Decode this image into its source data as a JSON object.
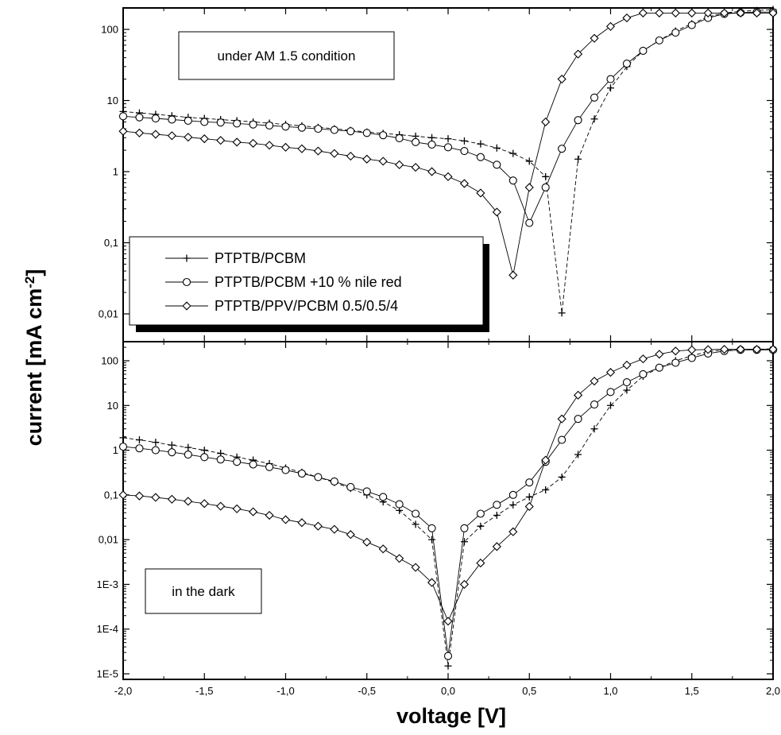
{
  "chart_data": {
    "type": "scatter",
    "xlabel": "voltage [V]",
    "ylabel": {
      "text": "current [mA cm",
      "sup": "-2",
      "tail": "]"
    },
    "xlim": [
      -2.0,
      2.0
    ],
    "x_ticks": [
      {
        "v": -2.0,
        "label": "-2,0"
      },
      {
        "v": -1.5,
        "label": "-1,5"
      },
      {
        "v": -1.0,
        "label": "-1,0"
      },
      {
        "v": -0.5,
        "label": "-0,5"
      },
      {
        "v": 0.0,
        "label": "0,0"
      },
      {
        "v": 0.5,
        "label": "0,5"
      },
      {
        "v": 1.0,
        "label": "1,0"
      },
      {
        "v": 1.5,
        "label": "1,5"
      },
      {
        "v": 2.0,
        "label": "2,0"
      }
    ],
    "log_scale": true,
    "legend": {
      "placement": "top panel, lower-left",
      "entries": [
        {
          "marker": "plus",
          "label": "PTPTB/PCBM"
        },
        {
          "marker": "circle",
          "label": "PTPTB/PCBM +10 % nile red"
        },
        {
          "marker": "diamond",
          "label": "PTPTB/PPV/PCBM 0.5/0.5/4"
        }
      ]
    },
    "panels": [
      {
        "id": "top",
        "annotation": "under AM 1.5 condition",
        "ylim": [
          0.005,
          200
        ],
        "y_ticks": [
          {
            "v": 0.01,
            "label": "0,01"
          },
          {
            "v": 0.1,
            "label": "0,1"
          },
          {
            "v": 1,
            "label": "1"
          },
          {
            "v": 10,
            "label": "10"
          },
          {
            "v": 100,
            "label": "100"
          }
        ],
        "series": [
          {
            "marker": "plus",
            "dash": true,
            "x": [
              -2.0,
              -1.9,
              -1.8,
              -1.7,
              -1.6,
              -1.5,
              -1.4,
              -1.3,
              -1.2,
              -1.1,
              -1.0,
              -0.9,
              -0.8,
              -0.7,
              -0.6,
              -0.5,
              -0.4,
              -0.3,
              -0.2,
              -0.1,
              0.0,
              0.1,
              0.2,
              0.3,
              0.4,
              0.5,
              0.6,
              0.7,
              0.8,
              0.9,
              1.0,
              1.1,
              1.2,
              1.3,
              1.4,
              1.5,
              1.6,
              1.7,
              1.8,
              1.9,
              2.0
            ],
            "y": [
              7,
              6.7,
              6.4,
              6.1,
              5.8,
              5.6,
              5.4,
              5.2,
              5.0,
              4.8,
              4.6,
              4.4,
              4.2,
              4.0,
              3.8,
              3.6,
              3.45,
              3.3,
              3.15,
              3.0,
              2.9,
              2.7,
              2.45,
              2.15,
              1.8,
              1.4,
              0.85,
              0.0103,
              1.5,
              5.5,
              15,
              30,
              50,
              70,
              95,
              120,
              150,
              170,
              180,
              185,
              190
            ]
          },
          {
            "marker": "circle",
            "x": [
              -2.0,
              -1.9,
              -1.8,
              -1.7,
              -1.6,
              -1.5,
              -1.4,
              -1.3,
              -1.2,
              -1.1,
              -1.0,
              -0.9,
              -0.8,
              -0.7,
              -0.6,
              -0.5,
              -0.4,
              -0.3,
              -0.2,
              -0.1,
              0.0,
              0.1,
              0.2,
              0.3,
              0.4,
              0.5,
              0.6,
              0.7,
              0.8,
              0.9,
              1.0,
              1.1,
              1.2,
              1.3,
              1.4,
              1.5,
              1.6,
              1.7,
              1.8,
              1.9,
              2.0
            ],
            "y": [
              6,
              5.8,
              5.6,
              5.4,
              5.2,
              5.0,
              4.9,
              4.75,
              4.6,
              4.45,
              4.3,
              4.15,
              4.0,
              3.85,
              3.7,
              3.5,
              3.25,
              2.95,
              2.6,
              2.4,
              2.2,
              1.95,
              1.6,
              1.25,
              0.75,
              0.19,
              0.6,
              2.1,
              5.3,
              11,
              20,
              33,
              50,
              70,
              90,
              115,
              145,
              165,
              172,
              175,
              175
            ]
          },
          {
            "marker": "diamond",
            "x": [
              -2.0,
              -1.9,
              -1.8,
              -1.7,
              -1.6,
              -1.5,
              -1.4,
              -1.3,
              -1.2,
              -1.1,
              -1.0,
              -0.9,
              -0.8,
              -0.7,
              -0.6,
              -0.5,
              -0.4,
              -0.3,
              -0.2,
              -0.1,
              0.0,
              0.1,
              0.2,
              0.3,
              0.4,
              0.5,
              0.6,
              0.7,
              0.8,
              0.9,
              1.0,
              1.1,
              1.2,
              1.3,
              1.4,
              1.5,
              1.6,
              1.7,
              1.8,
              1.9,
              2.0
            ],
            "y": [
              3.7,
              3.5,
              3.35,
              3.2,
              3.05,
              2.9,
              2.75,
              2.6,
              2.5,
              2.35,
              2.2,
              2.1,
              1.95,
              1.8,
              1.65,
              1.5,
              1.4,
              1.25,
              1.15,
              1.0,
              0.85,
              0.68,
              0.5,
              0.27,
              0.035,
              0.6,
              5.0,
              20,
              45,
              75,
              110,
              145,
              170,
              170,
              170,
              170,
              170,
              170,
              170,
              170,
              170
            ]
          }
        ]
      },
      {
        "id": "bottom",
        "annotation": "in the dark",
        "ylim": [
          1e-05,
          200
        ],
        "y_ticks": [
          {
            "v": 1e-05,
            "label": "1E-5"
          },
          {
            "v": 0.0001,
            "label": "1E-4"
          },
          {
            "v": 0.001,
            "label": "1E-3"
          },
          {
            "v": 0.01,
            "label": "0,01"
          },
          {
            "v": 0.1,
            "label": "0,1"
          },
          {
            "v": 1,
            "label": "1"
          },
          {
            "v": 10,
            "label": "10"
          },
          {
            "v": 100,
            "label": "100"
          }
        ],
        "series": [
          {
            "marker": "plus",
            "dash": true,
            "x": [
              -2.0,
              -1.9,
              -1.8,
              -1.7,
              -1.6,
              -1.5,
              -1.4,
              -1.3,
              -1.2,
              -1.1,
              -1.0,
              -0.9,
              -0.8,
              -0.7,
              -0.6,
              -0.5,
              -0.4,
              -0.3,
              -0.2,
              -0.1,
              0.0,
              0.1,
              0.2,
              0.3,
              0.4,
              0.5,
              0.6,
              0.7,
              0.8,
              0.9,
              1.0,
              1.1,
              1.2,
              1.3,
              1.4,
              1.5,
              1.6,
              1.7,
              1.8,
              1.9,
              2.0
            ],
            "y": [
              1.9,
              1.7,
              1.5,
              1.3,
              1.15,
              1.0,
              0.85,
              0.7,
              0.6,
              0.5,
              0.4,
              0.32,
              0.25,
              0.19,
              0.14,
              0.1,
              0.07,
              0.045,
              0.022,
              0.01,
              1.5e-05,
              0.009,
              0.02,
              0.035,
              0.06,
              0.09,
              0.13,
              0.25,
              0.8,
              3,
              10,
              22,
              45,
              70,
              100,
              130,
              160,
              175,
              180,
              180,
              185
            ]
          },
          {
            "marker": "circle",
            "x": [
              -2.0,
              -1.9,
              -1.8,
              -1.7,
              -1.6,
              -1.5,
              -1.4,
              -1.3,
              -1.2,
              -1.1,
              -1.0,
              -0.9,
              -0.8,
              -0.7,
              -0.6,
              -0.5,
              -0.4,
              -0.3,
              -0.2,
              -0.1,
              0.0,
              0.1,
              0.2,
              0.3,
              0.4,
              0.5,
              0.6,
              0.7,
              0.8,
              0.9,
              1.0,
              1.1,
              1.2,
              1.3,
              1.4,
              1.5,
              1.6,
              1.7,
              1.8,
              1.9,
              2.0
            ],
            "y": [
              1.2,
              1.1,
              1.0,
              0.9,
              0.8,
              0.7,
              0.62,
              0.55,
              0.48,
              0.42,
              0.36,
              0.3,
              0.25,
              0.2,
              0.15,
              0.12,
              0.09,
              0.062,
              0.038,
              0.018,
              2.5e-05,
              0.018,
              0.038,
              0.06,
              0.1,
              0.19,
              0.55,
              1.7,
              5,
              10.5,
              20,
              33,
              50,
              70,
              90,
              115,
              145,
              165,
              175,
              175,
              175
            ]
          },
          {
            "marker": "diamond",
            "x": [
              -2.0,
              -1.9,
              -1.8,
              -1.7,
              -1.6,
              -1.5,
              -1.4,
              -1.3,
              -1.2,
              -1.1,
              -1.0,
              -0.9,
              -0.8,
              -0.7,
              -0.6,
              -0.5,
              -0.4,
              -0.3,
              -0.2,
              -0.1,
              0.0,
              0.1,
              0.2,
              0.3,
              0.4,
              0.5,
              0.6,
              0.7,
              0.8,
              0.9,
              1.0,
              1.1,
              1.2,
              1.3,
              1.4,
              1.5,
              1.6,
              1.7,
              1.8,
              1.9,
              2.0
            ],
            "y": [
              0.1,
              0.095,
              0.088,
              0.08,
              0.072,
              0.064,
              0.056,
              0.049,
              0.042,
              0.035,
              0.028,
              0.024,
              0.02,
              0.017,
              0.013,
              0.0088,
              0.0062,
              0.0038,
              0.0024,
              0.0011,
              0.00015,
              0.001,
              0.003,
              0.007,
              0.015,
              0.055,
              0.6,
              5,
              17,
              35,
              55,
              80,
              110,
              140,
              165,
              175,
              178,
              180,
              180,
              180,
              180
            ]
          }
        ]
      }
    ]
  }
}
